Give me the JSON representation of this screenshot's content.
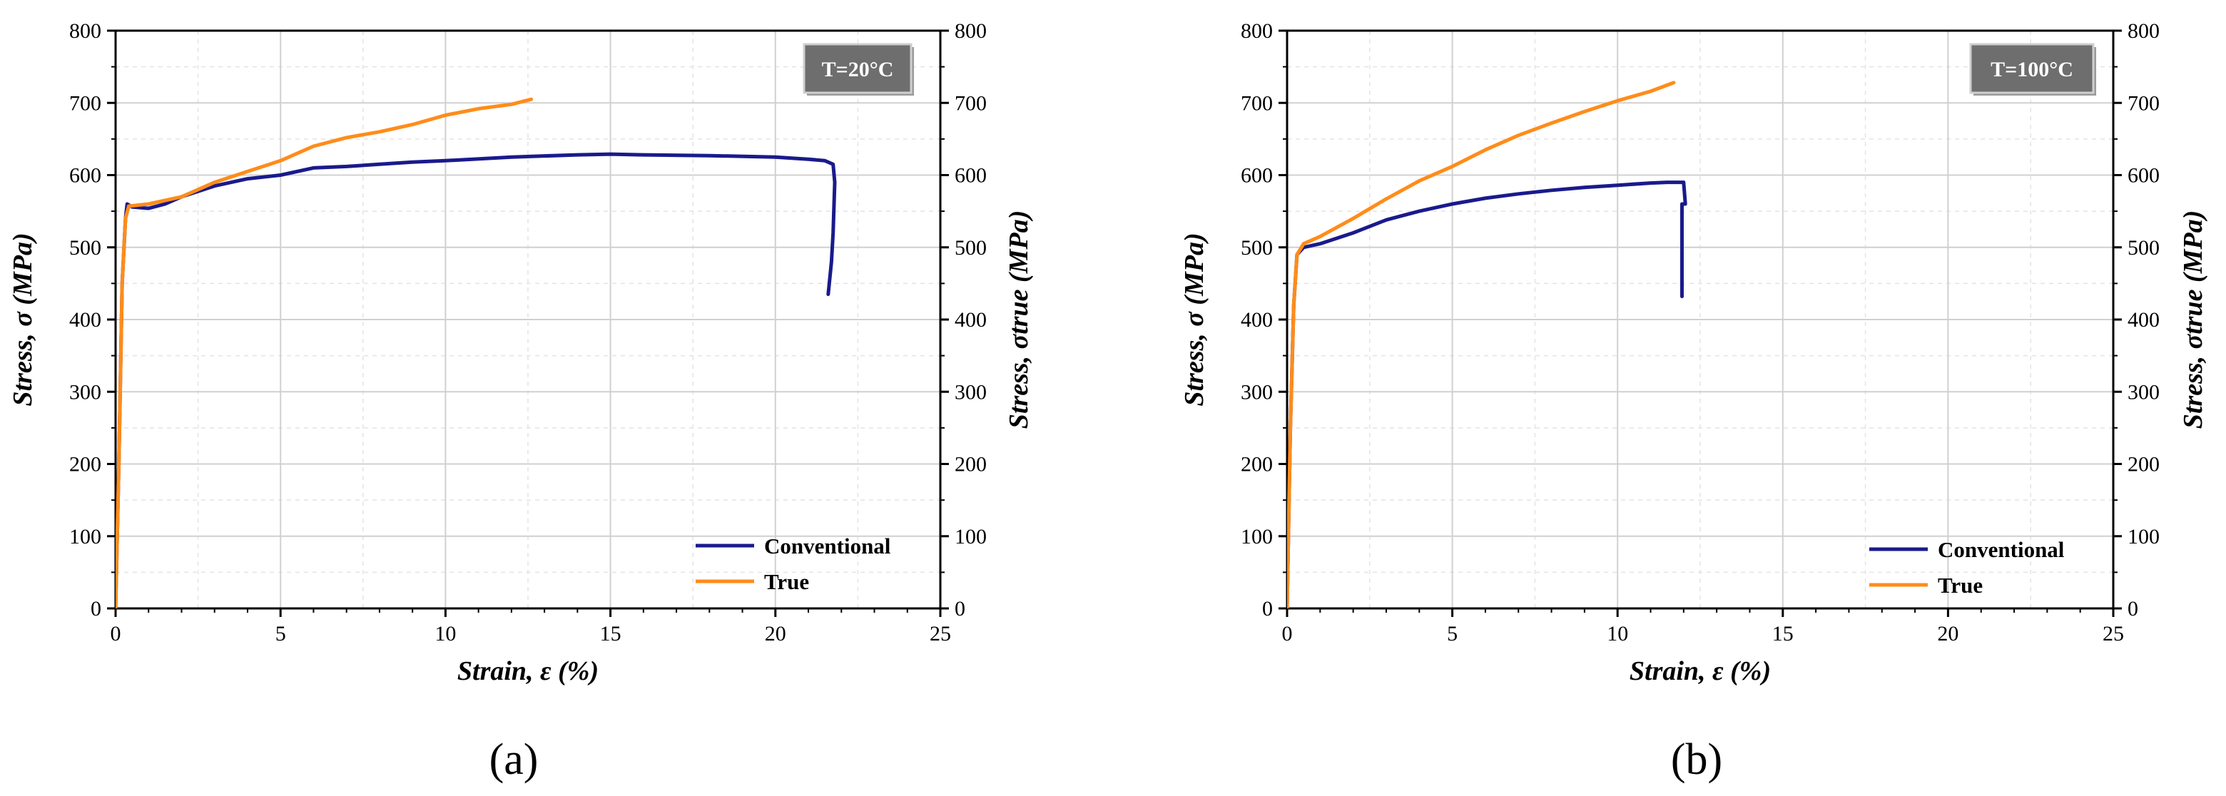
{
  "colors": {
    "conventional": "#1a1a8c",
    "true": "#ff8c1a",
    "grid": "#d0d0d0",
    "badge": "#6e6e6e"
  },
  "chart_data": [
    {
      "type": "line",
      "caption": "(a)",
      "temperature": "T=20°C",
      "xlabel": "Strain, ε (%)",
      "ylabel": "Stress, σ (MPa)",
      "ylabel_right": "Stress, σtrue (MPa)",
      "xlim": [
        0,
        25
      ],
      "ylim": [
        0,
        800
      ],
      "xticks": [
        0,
        5,
        10,
        15,
        20,
        25
      ],
      "yticks": [
        0,
        100,
        200,
        300,
        400,
        500,
        600,
        700,
        800
      ],
      "grid": true,
      "legend_position": "bottom-right",
      "series": [
        {
          "name": "Conventional",
          "color_key": "conventional",
          "x": [
            0,
            0.1,
            0.2,
            0.3,
            0.35,
            0.5,
            1.0,
            1.5,
            2,
            3,
            4,
            5,
            6,
            7,
            8,
            9,
            10,
            12,
            14,
            15,
            16,
            18,
            20,
            21,
            21.5,
            21.75,
            21.8,
            21.75,
            21.7,
            21.6
          ],
          "y": [
            0,
            200,
            450,
            540,
            560,
            556,
            554,
            560,
            570,
            585,
            595,
            600,
            610,
            612,
            615,
            618,
            620,
            625,
            628,
            629,
            628,
            627,
            625,
            622,
            620,
            615,
            590,
            520,
            480,
            435
          ]
        },
        {
          "name": "True",
          "color_key": "true",
          "x": [
            0,
            0.1,
            0.2,
            0.3,
            0.4,
            1.0,
            2,
            3,
            4,
            5,
            6,
            7,
            8,
            9,
            10,
            11,
            12,
            12.6
          ],
          "y": [
            0,
            200,
            450,
            540,
            557,
            560,
            570,
            590,
            605,
            620,
            640,
            652,
            660,
            670,
            683,
            692,
            698,
            705
          ]
        }
      ]
    },
    {
      "type": "line",
      "caption": "(b)",
      "temperature": "T=100°C",
      "xlabel": "Strain, ε (%)",
      "ylabel": "Stress, σ (MPa)",
      "ylabel_right": "Stress, σtrue (MPa)",
      "xlim": [
        0,
        25
      ],
      "ylim": [
        0,
        800
      ],
      "xticks": [
        0,
        5,
        10,
        15,
        20,
        25
      ],
      "yticks": [
        0,
        100,
        200,
        300,
        400,
        500,
        600,
        700,
        800
      ],
      "grid": true,
      "legend_position": "bottom-right",
      "series": [
        {
          "name": "Conventional",
          "color_key": "conventional",
          "x": [
            0,
            0.1,
            0.2,
            0.3,
            0.5,
            1.0,
            2,
            3,
            4,
            5,
            6,
            7,
            8,
            9,
            10,
            11,
            11.5,
            12.0,
            12.05,
            12.0,
            11.95,
            11.95
          ],
          "y": [
            0,
            250,
            420,
            490,
            500,
            505,
            520,
            538,
            550,
            560,
            568,
            574,
            579,
            583,
            586,
            589,
            590,
            590,
            560,
            560,
            560,
            432
          ]
        },
        {
          "name": "True",
          "color_key": "true",
          "x": [
            0,
            0.1,
            0.2,
            0.3,
            0.5,
            1.0,
            2,
            3,
            4,
            5,
            6,
            7,
            8,
            9,
            10,
            11,
            11.7
          ],
          "y": [
            0,
            250,
            420,
            490,
            505,
            515,
            540,
            567,
            592,
            612,
            635,
            655,
            672,
            688,
            703,
            716,
            728
          ]
        }
      ]
    }
  ]
}
